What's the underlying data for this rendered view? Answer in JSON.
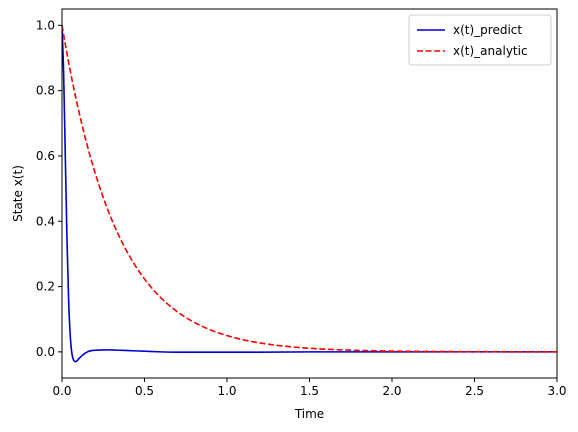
{
  "chart_data": {
    "type": "line",
    "title": "",
    "xlabel": "Time",
    "ylabel": "State x(t)",
    "xlim": [
      0,
      3.0
    ],
    "ylim": [
      -0.08,
      1.05
    ],
    "xticks": [
      "0.0",
      "0.5",
      "1.0",
      "1.5",
      "2.0",
      "2.5",
      "3.0"
    ],
    "yticks": [
      "0.0",
      "0.2",
      "0.4",
      "0.6",
      "0.8",
      "1.0"
    ],
    "grid": false,
    "legend_position": "top-right",
    "series": [
      {
        "name": "x(t)_predict",
        "color": "#0000cc",
        "style": "solid",
        "x": [
          0,
          0.01,
          0.02,
          0.03,
          0.04,
          0.05,
          0.06,
          0.07,
          0.08,
          0.09,
          0.1,
          0.12,
          0.14,
          0.16,
          0.18,
          0.2,
          0.25,
          0.3,
          0.35,
          0.4,
          0.5,
          0.6,
          0.7,
          0.8,
          1.0,
          1.2,
          1.5,
          2.0,
          2.5,
          3.0
        ],
        "y": [
          1.0,
          0.85,
          0.6,
          0.35,
          0.16,
          0.05,
          -0.005,
          -0.025,
          -0.03,
          -0.028,
          -0.022,
          -0.012,
          -0.004,
          0.001,
          0.004,
          0.005,
          0.006,
          0.006,
          0.005,
          0.004,
          0.002,
          0.0,
          -0.001,
          -0.001,
          -0.001,
          -0.001,
          0.0,
          0.0,
          0.0,
          0.0
        ]
      },
      {
        "name": "x(t)_analytic",
        "color": "#ff0000",
        "style": "dashed",
        "function": "exp(-3t)",
        "samples": 150
      }
    ]
  }
}
